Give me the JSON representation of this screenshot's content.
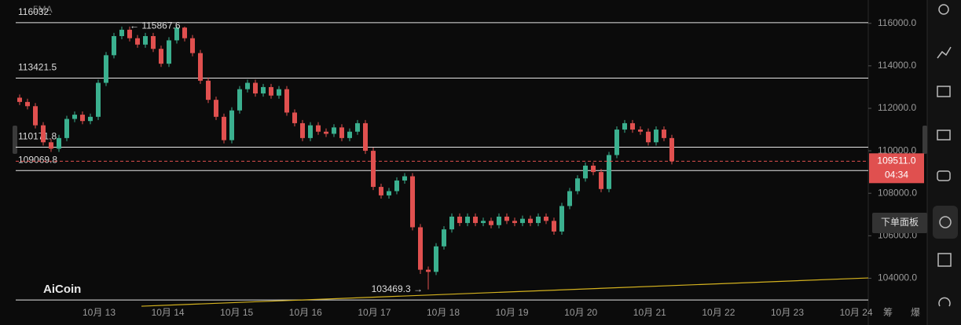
{
  "toolbar": {
    "tooltip": "下单面板",
    "bottom_buttons": [
      "筹",
      "爆"
    ]
  },
  "chart_data": {
    "type": "candlestick",
    "indicator": "5MA",
    "watermark": "AiCoin",
    "categories": [
      "10月 13",
      "10月 14",
      "10月 15",
      "10月 16",
      "10月 17",
      "10月 18",
      "10月 19",
      "10月 20",
      "10月 21",
      "10月 22",
      "10月 23",
      "10月 24"
    ],
    "ylim": [
      102500,
      117100
    ],
    "yticks": [
      {
        "value": 104000,
        "label": "104000.0"
      },
      {
        "value": 106000,
        "label": "106000.0"
      },
      {
        "value": 108000,
        "label": "108000.0"
      },
      {
        "value": 110000,
        "label": "110000.0"
      },
      {
        "value": 112000,
        "label": "112000.0"
      },
      {
        "value": 114000,
        "label": "114000.0"
      },
      {
        "value": 116000,
        "label": "116000.0"
      }
    ],
    "candles": {
      "up_color": "#3bb08f",
      "down_color": "#e0504f",
      "open": [
        112500,
        112300,
        112100,
        111200,
        110400,
        110100,
        110600,
        111500,
        111700,
        111400,
        111600,
        113200,
        114500,
        115400,
        115700,
        115300,
        115000,
        115400,
        114800,
        114100,
        115200,
        115800,
        115300,
        114600,
        113300,
        112400,
        111600,
        110500,
        111900,
        112900,
        113200,
        112700,
        113000,
        112600,
        112900,
        111800,
        111300,
        110600,
        111200,
        110900,
        110800,
        111100,
        110600,
        110900,
        111300,
        110000,
        108300,
        107900,
        108100,
        108600,
        108800,
        106400,
        104400,
        104300,
        105500,
        106300,
        106900,
        106600,
        106900,
        106600,
        106700,
        106500,
        106900,
        106700,
        106600,
        106800,
        106600,
        106900,
        106700,
        106200,
        107400,
        108100,
        108700,
        109300,
        109000,
        108200,
        109800,
        111000,
        111300,
        111000,
        110900,
        110400,
        111000,
        110600
      ],
      "high": [
        112650,
        112450,
        112250,
        111350,
        110550,
        110750,
        111650,
        111850,
        111850,
        111750,
        113350,
        114650,
        115550,
        115850,
        115850,
        115450,
        115550,
        115550,
        114950,
        115350,
        115867.6,
        115850,
        115450,
        114750,
        113450,
        112550,
        111750,
        112050,
        113050,
        113350,
        113350,
        113150,
        113150,
        113050,
        113050,
        111950,
        111450,
        111350,
        111350,
        111050,
        111250,
        111250,
        111050,
        111450,
        111450,
        110150,
        108450,
        108250,
        108750,
        108950,
        108950,
        106550,
        104550,
        105650,
        106450,
        107050,
        107050,
        107050,
        107050,
        106850,
        106850,
        107050,
        107050,
        106850,
        106950,
        106950,
        107050,
        107050,
        106850,
        107550,
        108250,
        108850,
        109450,
        109450,
        109150,
        109950,
        111150,
        111450,
        111450,
        111150,
        111050,
        111150,
        111150,
        110750
      ],
      "low": [
        112150,
        111950,
        111050,
        110250,
        109950,
        109950,
        110450,
        111350,
        111250,
        111250,
        111450,
        113050,
        114350,
        115250,
        115150,
        114850,
        114850,
        114650,
        113950,
        113950,
        115050,
        115150,
        114450,
        113150,
        112250,
        111450,
        110350,
        110350,
        111750,
        112750,
        112550,
        112550,
        112450,
        112450,
        111650,
        111150,
        110450,
        110450,
        110750,
        110650,
        110650,
        110450,
        110450,
        110750,
        109850,
        108150,
        107750,
        107750,
        107950,
        108450,
        106250,
        104200,
        103469.3,
        104150,
        105350,
        106150,
        106450,
        106450,
        106450,
        106450,
        106350,
        106350,
        106550,
        106450,
        106450,
        106450,
        106450,
        106550,
        106050,
        106050,
        107250,
        107950,
        108550,
        108850,
        108050,
        108050,
        109650,
        110850,
        110850,
        110750,
        110250,
        110250,
        110450,
        109361
      ],
      "close": [
        112300,
        112100,
        111200,
        110400,
        110100,
        110600,
        111500,
        111700,
        111400,
        111600,
        113200,
        114500,
        115400,
        115700,
        115300,
        115000,
        115400,
        114800,
        114100,
        115200,
        115800,
        115300,
        114600,
        113300,
        112400,
        111600,
        110500,
        111900,
        112900,
        113200,
        112700,
        113000,
        112600,
        112900,
        111800,
        111300,
        110600,
        111200,
        110900,
        110800,
        111100,
        110600,
        110900,
        111300,
        110000,
        108300,
        107900,
        108100,
        108600,
        108800,
        106400,
        104400,
        104300,
        105500,
        106300,
        106900,
        106600,
        106900,
        106600,
        106700,
        106500,
        106900,
        106700,
        106600,
        106800,
        106600,
        106900,
        106700,
        106200,
        107400,
        108100,
        108700,
        109300,
        109000,
        108200,
        109800,
        111000,
        111300,
        111000,
        110900,
        110400,
        111000,
        110600,
        109511
      ]
    },
    "levels": [
      {
        "value": 116032,
        "label": "116032."
      },
      {
        "value": 113421.5,
        "label": "113421.5"
      },
      {
        "value": 110171.8,
        "label": "110171.8"
      },
      {
        "value": 109069.8,
        "label": "109069.8"
      },
      {
        "value": 102978
      }
    ],
    "trendline": {
      "color": "#d4b21f",
      "values": [
        102683,
        104013
      ]
    },
    "last_price": {
      "value": 109511,
      "label": "109511.0",
      "countdown": "04:34",
      "color": "#e0504f"
    },
    "annotations": [
      {
        "text": "← 115867.6",
        "value": 115867.6
      },
      {
        "text": "103469.3 →",
        "value": 103469.3
      }
    ]
  }
}
